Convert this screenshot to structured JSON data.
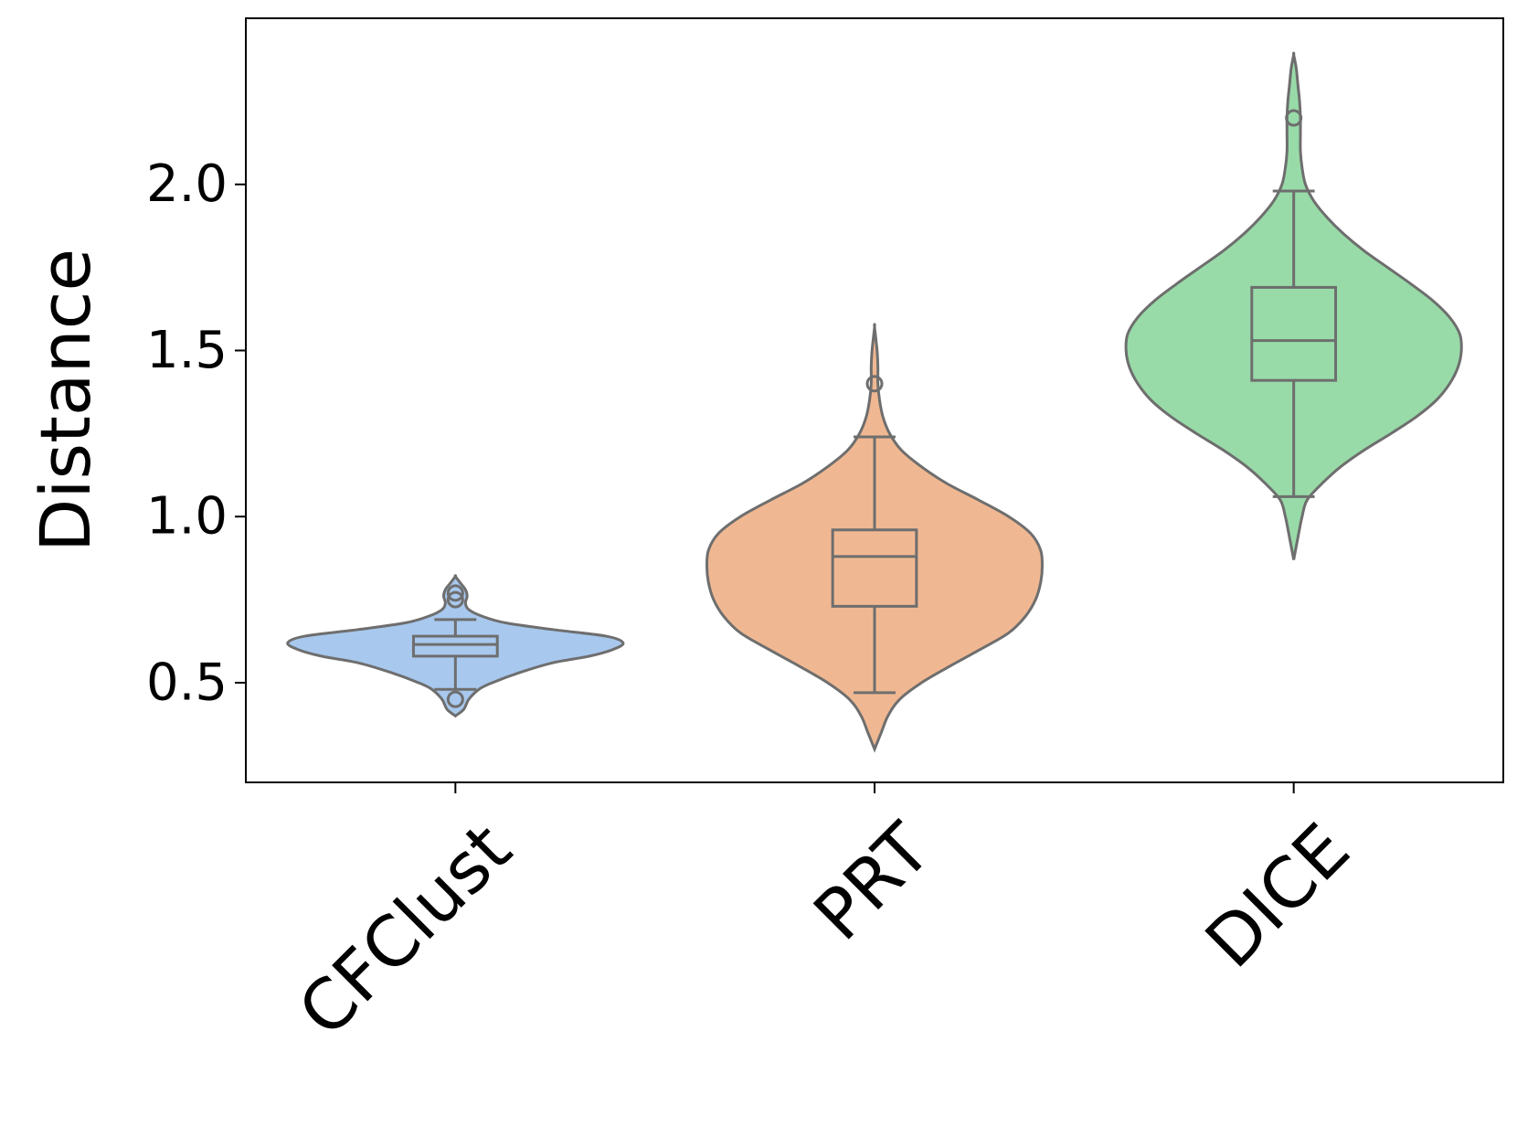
{
  "chart_data": {
    "type": "violin",
    "ylabel": "Distance",
    "xlabel": "",
    "ylim": [
      0.2,
      2.5
    ],
    "yticks": [
      0.5,
      1.0,
      1.5,
      2.0
    ],
    "ytick_labels": [
      "0.5",
      "1.0",
      "1.5",
      "2.0"
    ],
    "categories": [
      "CFClust",
      "PRT",
      "DICE"
    ],
    "grid": false,
    "edge_color": "#6e6e6e",
    "series": [
      {
        "category": "CFClust",
        "color": "#a8c8ee",
        "min": 0.48,
        "q1": 0.58,
        "median": 0.615,
        "q3": 0.64,
        "max": 0.69,
        "outliers": [
          0.45,
          0.75,
          0.77
        ],
        "kde_low": 0.4,
        "kde_high": 0.82,
        "density": [
          [
            0.4,
            0.0
          ],
          [
            0.42,
            0.05
          ],
          [
            0.45,
            0.08
          ],
          [
            0.48,
            0.14
          ],
          [
            0.5,
            0.22
          ],
          [
            0.53,
            0.38
          ],
          [
            0.56,
            0.58
          ],
          [
            0.58,
            0.8
          ],
          [
            0.6,
            0.94
          ],
          [
            0.62,
            1.0
          ],
          [
            0.64,
            0.9
          ],
          [
            0.66,
            0.58
          ],
          [
            0.68,
            0.3
          ],
          [
            0.7,
            0.16
          ],
          [
            0.72,
            0.08
          ],
          [
            0.74,
            0.06
          ],
          [
            0.76,
            0.07
          ],
          [
            0.78,
            0.06
          ],
          [
            0.8,
            0.03
          ],
          [
            0.82,
            0.0
          ]
        ]
      },
      {
        "category": "PRT",
        "color": "#f0b892",
        "min": 0.47,
        "q1": 0.73,
        "median": 0.88,
        "q3": 0.96,
        "max": 1.24,
        "outliers": [
          1.4
        ],
        "kde_low": 0.3,
        "kde_high": 1.57,
        "density": [
          [
            0.3,
            0.0
          ],
          [
            0.35,
            0.04
          ],
          [
            0.4,
            0.08
          ],
          [
            0.45,
            0.15
          ],
          [
            0.5,
            0.28
          ],
          [
            0.55,
            0.45
          ],
          [
            0.6,
            0.63
          ],
          [
            0.65,
            0.8
          ],
          [
            0.7,
            0.9
          ],
          [
            0.75,
            0.96
          ],
          [
            0.8,
            0.99
          ],
          [
            0.85,
            1.0
          ],
          [
            0.9,
            0.99
          ],
          [
            0.95,
            0.93
          ],
          [
            1.0,
            0.8
          ],
          [
            1.05,
            0.62
          ],
          [
            1.1,
            0.43
          ],
          [
            1.15,
            0.28
          ],
          [
            1.2,
            0.16
          ],
          [
            1.25,
            0.09
          ],
          [
            1.3,
            0.05
          ],
          [
            1.35,
            0.03
          ],
          [
            1.4,
            0.02
          ],
          [
            1.45,
            0.02
          ],
          [
            1.5,
            0.015
          ],
          [
            1.57,
            0.0
          ]
        ]
      },
      {
        "category": "DICE",
        "color": "#98dba8",
        "min": 1.06,
        "q1": 1.41,
        "median": 1.53,
        "q3": 1.69,
        "max": 1.98,
        "outliers": [
          2.2
        ],
        "kde_low": 0.87,
        "kde_high": 2.39,
        "density": [
          [
            0.87,
            0.0
          ],
          [
            0.95,
            0.03
          ],
          [
            1.0,
            0.05
          ],
          [
            1.05,
            0.08
          ],
          [
            1.1,
            0.17
          ],
          [
            1.15,
            0.28
          ],
          [
            1.2,
            0.42
          ],
          [
            1.25,
            0.58
          ],
          [
            1.3,
            0.73
          ],
          [
            1.35,
            0.85
          ],
          [
            1.4,
            0.93
          ],
          [
            1.45,
            0.98
          ],
          [
            1.5,
            1.0
          ],
          [
            1.55,
            0.99
          ],
          [
            1.6,
            0.93
          ],
          [
            1.65,
            0.83
          ],
          [
            1.7,
            0.7
          ],
          [
            1.75,
            0.56
          ],
          [
            1.8,
            0.42
          ],
          [
            1.85,
            0.3
          ],
          [
            1.9,
            0.2
          ],
          [
            1.95,
            0.12
          ],
          [
            2.0,
            0.07
          ],
          [
            2.05,
            0.05
          ],
          [
            2.1,
            0.04
          ],
          [
            2.15,
            0.04
          ],
          [
            2.2,
            0.04
          ],
          [
            2.25,
            0.035
          ],
          [
            2.3,
            0.025
          ],
          [
            2.35,
            0.015
          ],
          [
            2.39,
            0.0
          ]
        ]
      }
    ]
  }
}
